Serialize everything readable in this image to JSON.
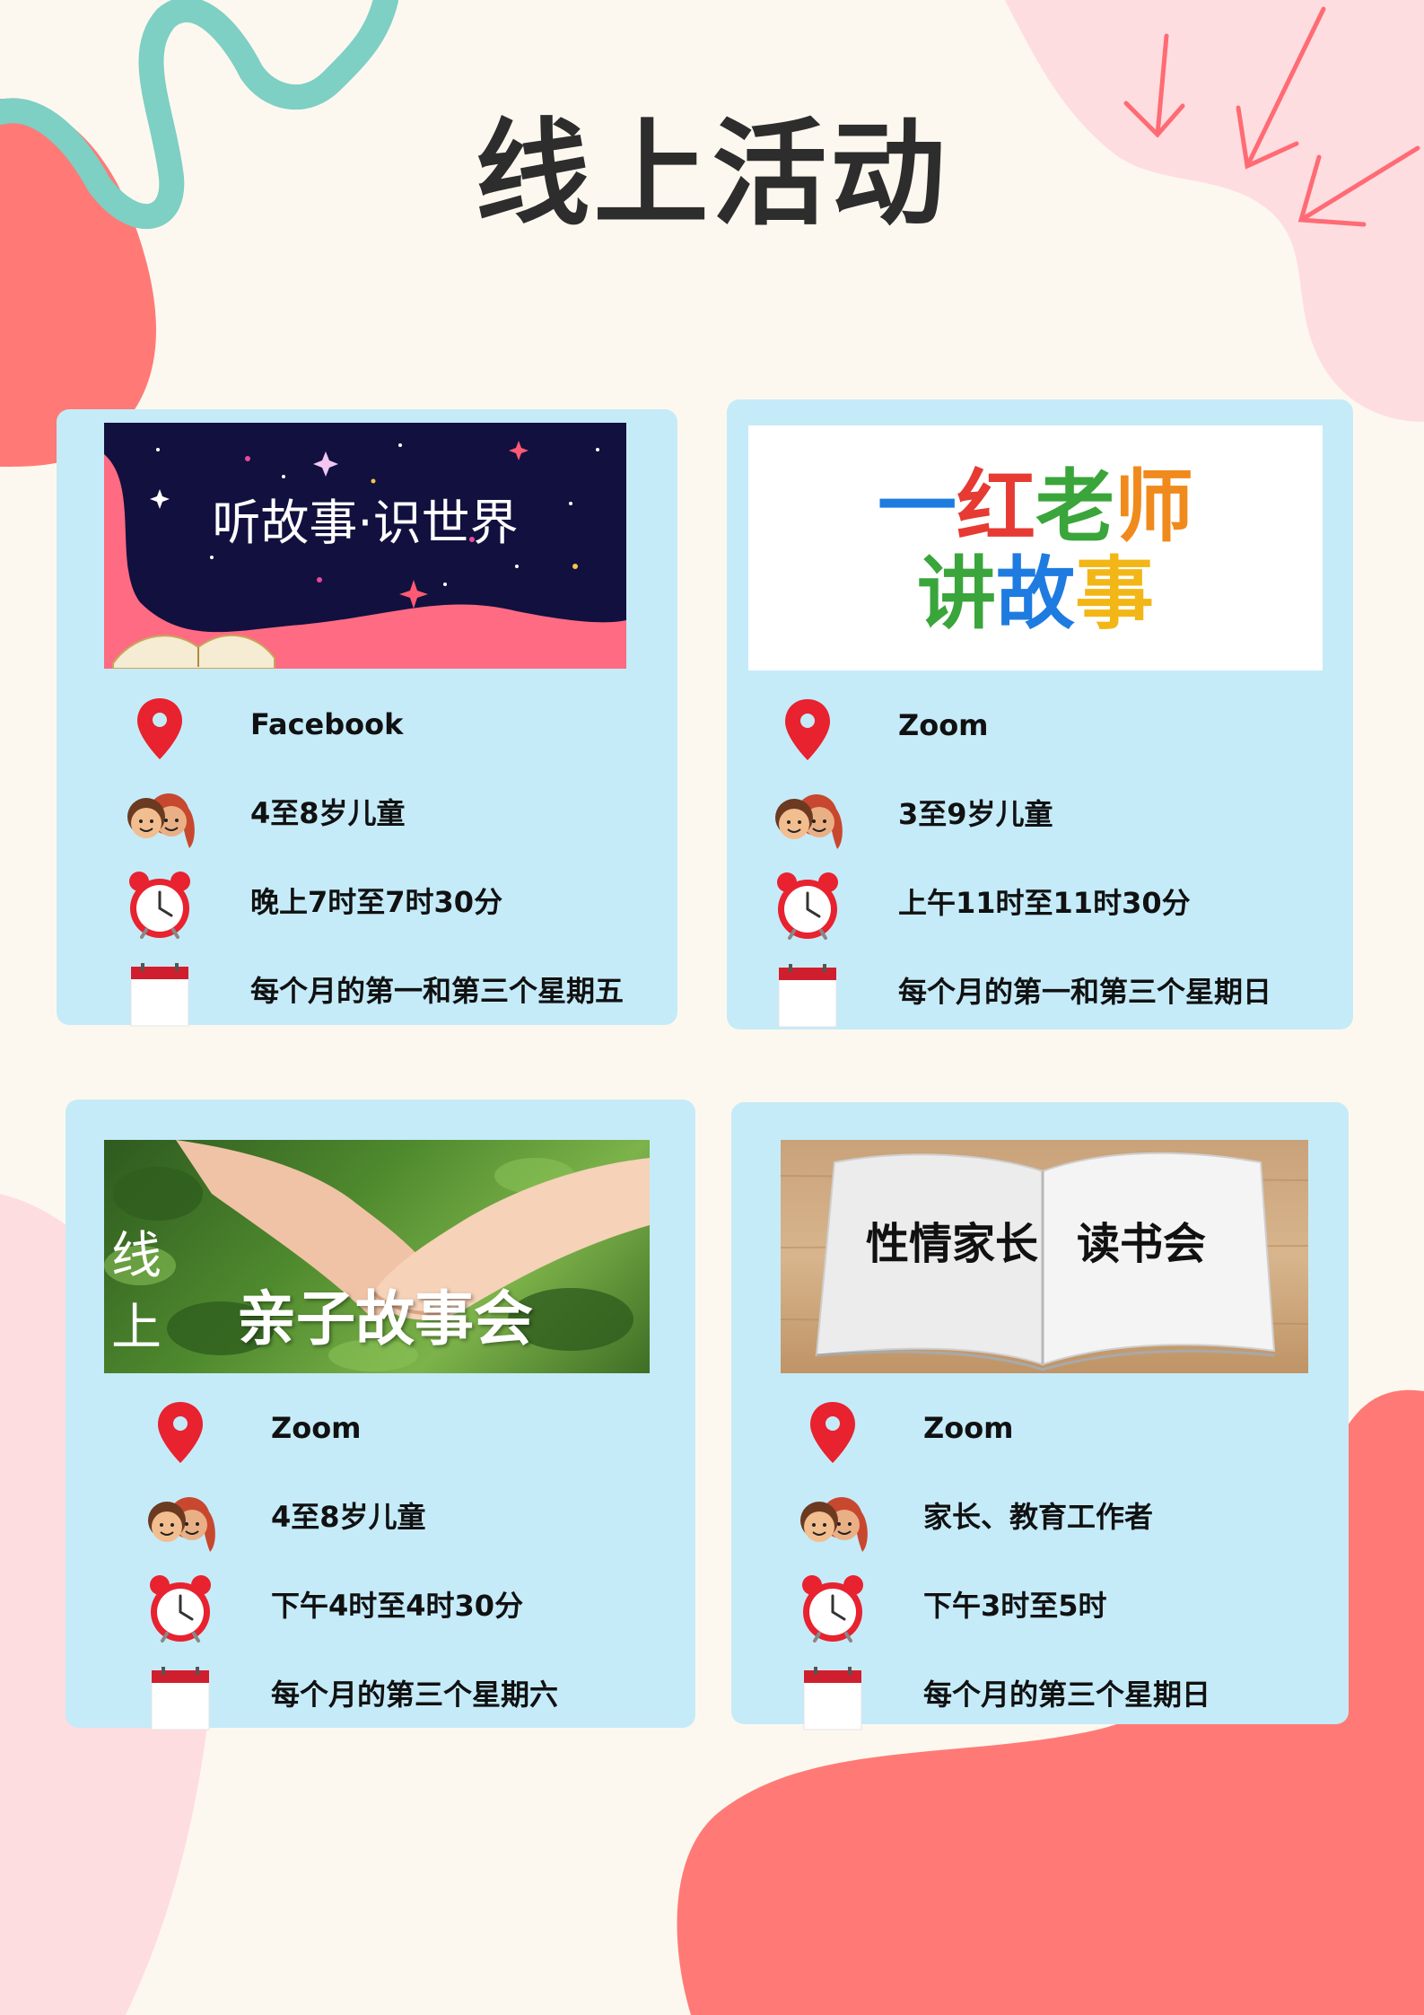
{
  "page": {
    "title": "线上活动"
  },
  "cards": [
    {
      "banner": {
        "text": "听故事·识世界"
      },
      "platform": "Facebook",
      "audience": "4至8岁儿童",
      "time": "晚上7时至7时30分",
      "schedule": "每个月的第一和第三个星期五"
    },
    {
      "banner": {
        "chars": [
          {
            "c": "一",
            "color": "#1e7be0"
          },
          {
            "c": "红",
            "color": "#e63a32"
          },
          {
            "c": "老",
            "color": "#3aa53a"
          },
          {
            "c": "师",
            "color": "#f08a1c"
          },
          {
            "c": "讲",
            "color": "#3aa53a"
          },
          {
            "c": "故",
            "color": "#1e7be0"
          },
          {
            "c": "事",
            "color": "#f2b616"
          }
        ]
      },
      "platform": "Zoom",
      "audience": "3至9岁儿童",
      "time": "上午11时至11时30分",
      "schedule": "每个月的第一和第三个星期日"
    },
    {
      "banner": {
        "small1": "线",
        "small2": "上",
        "main": "亲子故事会"
      },
      "platform": "Zoom",
      "audience": "4至8岁儿童",
      "time": "下午4时至4时30分",
      "schedule": "每个月的第三个星期六"
    },
    {
      "banner": {
        "left": "性情家长",
        "right": "读书会"
      },
      "platform": "Zoom",
      "audience": "家长、教育工作者",
      "time": "下午3时至5时",
      "schedule": "每个月的第三个星期日"
    }
  ],
  "icons": [
    "location-pin-icon",
    "children-icon",
    "alarm-clock-icon",
    "calendar-icon"
  ],
  "colors": {
    "background": "#fdf8ef",
    "card": "#c5ebf9",
    "coral": "#ff7a76",
    "pink": "#fedde0",
    "teal": "#7ecfc4",
    "night": "#12103f"
  }
}
